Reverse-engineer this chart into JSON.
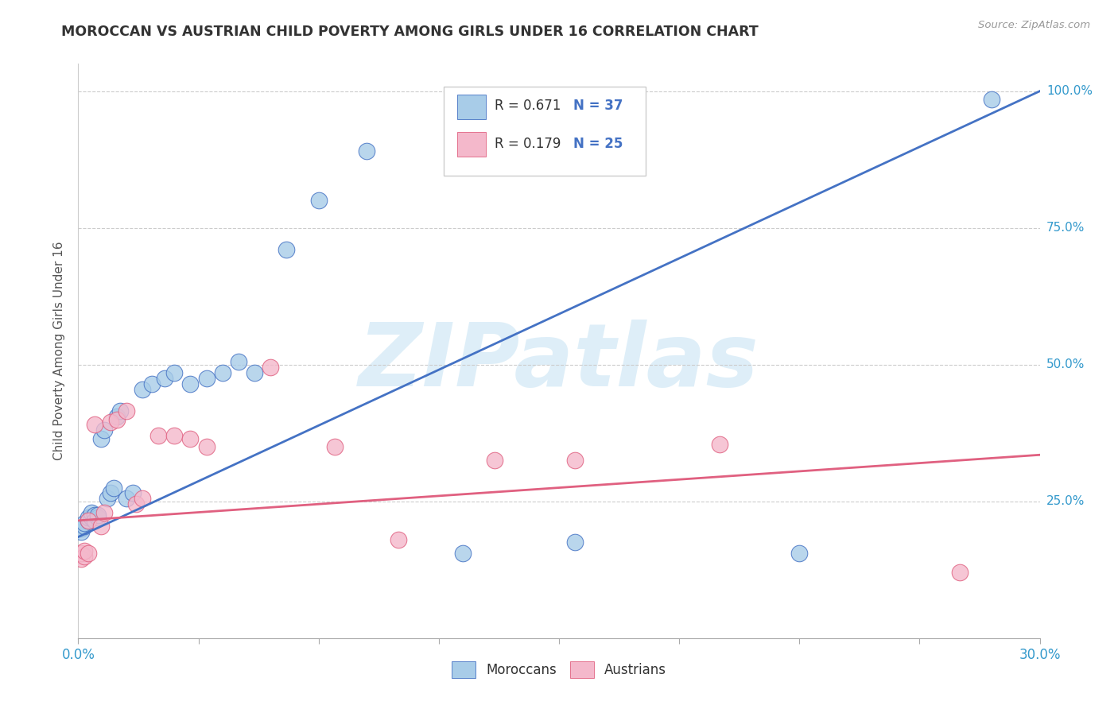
{
  "title": "MOROCCAN VS AUSTRIAN CHILD POVERTY AMONG GIRLS UNDER 16 CORRELATION CHART",
  "source": "Source: ZipAtlas.com",
  "ylabel": "Child Poverty Among Girls Under 16",
  "watermark": "ZIPatlas",
  "legend_blue_r": "R = 0.671",
  "legend_blue_n": "N = 37",
  "legend_pink_r": "R = 0.179",
  "legend_pink_n": "N = 25",
  "legend_blue_label": "Moroccans",
  "legend_pink_label": "Austrians",
  "blue_color": "#a8cce8",
  "pink_color": "#f4b8cb",
  "line_blue_color": "#4472c4",
  "line_pink_color": "#e06080",
  "blue_x": [
    0.001,
    0.001,
    0.002,
    0.002,
    0.003,
    0.003,
    0.004,
    0.004,
    0.005,
    0.005,
    0.006,
    0.006,
    0.007,
    0.008,
    0.009,
    0.01,
    0.011,
    0.012,
    0.013,
    0.015,
    0.017,
    0.02,
    0.023,
    0.027,
    0.03,
    0.035,
    0.04,
    0.045,
    0.05,
    0.055,
    0.065,
    0.075,
    0.09,
    0.12,
    0.155,
    0.225,
    0.285
  ],
  "blue_y": [
    0.2,
    0.195,
    0.205,
    0.21,
    0.215,
    0.22,
    0.22,
    0.23,
    0.225,
    0.215,
    0.22,
    0.225,
    0.365,
    0.38,
    0.255,
    0.265,
    0.275,
    0.405,
    0.415,
    0.255,
    0.265,
    0.455,
    0.465,
    0.475,
    0.485,
    0.465,
    0.475,
    0.485,
    0.505,
    0.485,
    0.71,
    0.8,
    0.89,
    0.155,
    0.175,
    0.155,
    0.985
  ],
  "pink_x": [
    0.001,
    0.001,
    0.002,
    0.002,
    0.003,
    0.003,
    0.005,
    0.007,
    0.008,
    0.01,
    0.012,
    0.015,
    0.018,
    0.02,
    0.025,
    0.03,
    0.035,
    0.04,
    0.06,
    0.08,
    0.1,
    0.13,
    0.155,
    0.2,
    0.275
  ],
  "pink_y": [
    0.145,
    0.155,
    0.15,
    0.16,
    0.155,
    0.215,
    0.39,
    0.205,
    0.23,
    0.395,
    0.4,
    0.415,
    0.245,
    0.255,
    0.37,
    0.37,
    0.365,
    0.35,
    0.495,
    0.35,
    0.18,
    0.325,
    0.325,
    0.355,
    0.12
  ],
  "blue_line_x0": 0.0,
  "blue_line_y0": 0.185,
  "blue_line_x1": 0.3,
  "blue_line_y1": 1.0,
  "pink_line_x0": 0.0,
  "pink_line_y0": 0.215,
  "pink_line_x1": 0.3,
  "pink_line_y1": 0.335,
  "xmin": 0.0,
  "xmax": 0.3,
  "ymin": 0.0,
  "ymax": 1.05,
  "background_color": "#ffffff",
  "grid_color": "#cccccc",
  "title_color": "#333333",
  "axis_label_color": "#3399cc",
  "text_color": "#333333",
  "source_color": "#999999"
}
